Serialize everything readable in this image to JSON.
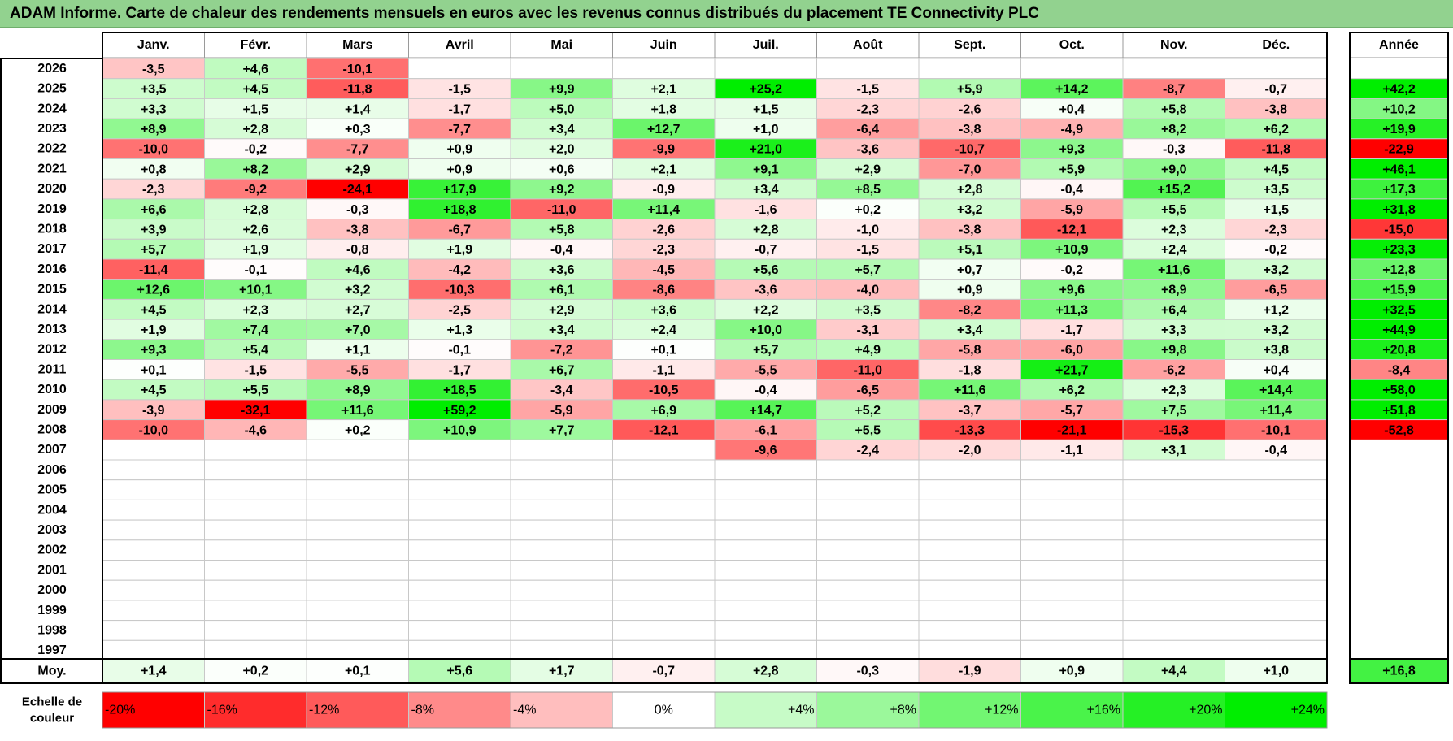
{
  "title": "ADAM Informe. Carte de chaleur des rendements mensuels en euros avec les revenus connus distribués du placement TE Connectivity PLC",
  "chart_data": {
    "type": "heatmap",
    "months": [
      "Janv.",
      "Févr.",
      "Mars",
      "Avril",
      "Mai",
      "Juin",
      "Juil.",
      "Août",
      "Sept.",
      "Oct.",
      "Nov.",
      "Déc."
    ],
    "year_column_label": "Année",
    "years": [
      "2026",
      "2025",
      "2024",
      "2023",
      "2022",
      "2021",
      "2020",
      "2019",
      "2018",
      "2017",
      "2016",
      "2015",
      "2014",
      "2013",
      "2012",
      "2011",
      "2010",
      "2009",
      "2008",
      "2007",
      "2006",
      "2005",
      "2004",
      "2003",
      "2002",
      "2001",
      "2000",
      "1999",
      "1998",
      "1997"
    ],
    "values": [
      [
        -3.5,
        4.6,
        -10.1,
        null,
        null,
        null,
        null,
        null,
        null,
        null,
        null,
        null
      ],
      [
        3.5,
        4.5,
        -11.8,
        -1.5,
        9.9,
        2.1,
        25.2,
        -1.5,
        5.9,
        14.2,
        -8.7,
        -0.7
      ],
      [
        3.3,
        1.5,
        1.4,
        -1.7,
        5.0,
        1.8,
        1.5,
        -2.3,
        -2.6,
        0.4,
        5.8,
        -3.8
      ],
      [
        8.9,
        2.8,
        0.3,
        -7.7,
        3.4,
        12.7,
        1.0,
        -6.4,
        -3.8,
        -4.9,
        8.2,
        6.2
      ],
      [
        -10.0,
        -0.2,
        -7.7,
        0.9,
        2.0,
        -9.9,
        21.0,
        -3.6,
        -10.7,
        9.3,
        -0.3,
        -11.8
      ],
      [
        0.8,
        8.2,
        2.9,
        0.9,
        0.6,
        2.1,
        9.1,
        2.9,
        -7.0,
        5.9,
        9.0,
        4.5
      ],
      [
        -2.3,
        -9.2,
        -24.1,
        17.9,
        9.2,
        -0.9,
        3.4,
        8.5,
        2.8,
        -0.4,
        15.2,
        3.5
      ],
      [
        6.6,
        2.8,
        -0.3,
        18.8,
        -11.0,
        11.4,
        -1.6,
        0.2,
        3.2,
        -5.9,
        5.5,
        1.5
      ],
      [
        3.9,
        2.6,
        -3.8,
        -6.7,
        5.8,
        -2.6,
        2.8,
        -1.0,
        -3.8,
        -12.1,
        2.3,
        -2.3
      ],
      [
        5.7,
        1.9,
        -0.8,
        1.9,
        -0.4,
        -2.3,
        -0.7,
        -1.5,
        5.1,
        10.9,
        2.4,
        -0.2
      ],
      [
        -11.4,
        -0.1,
        4.6,
        -4.2,
        3.6,
        -4.5,
        5.6,
        5.7,
        0.7,
        -0.2,
        11.6,
        3.2
      ],
      [
        12.6,
        10.1,
        3.2,
        -10.3,
        6.1,
        -8.6,
        -3.6,
        -4.0,
        0.9,
        9.6,
        8.9,
        -6.5
      ],
      [
        4.5,
        2.3,
        2.7,
        -2.5,
        2.9,
        3.6,
        2.2,
        3.5,
        -8.2,
        11.3,
        6.4,
        1.2
      ],
      [
        1.9,
        7.4,
        7.0,
        1.3,
        3.4,
        2.4,
        10.0,
        -3.1,
        3.4,
        -1.7,
        3.3,
        3.2
      ],
      [
        9.3,
        5.4,
        1.1,
        -0.1,
        -7.2,
        0.1,
        5.7,
        4.9,
        -5.8,
        -6.0,
        9.8,
        3.8
      ],
      [
        0.1,
        -1.5,
        -5.5,
        -1.7,
        6.7,
        -1.1,
        -5.5,
        -11.0,
        -1.8,
        21.7,
        -6.2,
        0.4
      ],
      [
        4.5,
        5.5,
        8.9,
        18.5,
        -3.4,
        -10.5,
        -0.4,
        -6.5,
        11.6,
        6.2,
        2.3,
        14.4
      ],
      [
        -3.9,
        -32.1,
        11.6,
        59.2,
        -5.9,
        6.9,
        14.7,
        5.2,
        -3.7,
        -5.7,
        7.5,
        11.4
      ],
      [
        -10.0,
        -4.6,
        0.2,
        10.9,
        7.7,
        -12.1,
        -6.1,
        5.5,
        -13.3,
        -21.1,
        -15.3,
        -10.1
      ],
      [
        null,
        null,
        null,
        null,
        null,
        null,
        -9.6,
        -2.4,
        -2.0,
        -1.1,
        3.1,
        -0.4
      ],
      [
        null,
        null,
        null,
        null,
        null,
        null,
        null,
        null,
        null,
        null,
        null,
        null
      ],
      [
        null,
        null,
        null,
        null,
        null,
        null,
        null,
        null,
        null,
        null,
        null,
        null
      ],
      [
        null,
        null,
        null,
        null,
        null,
        null,
        null,
        null,
        null,
        null,
        null,
        null
      ],
      [
        null,
        null,
        null,
        null,
        null,
        null,
        null,
        null,
        null,
        null,
        null,
        null
      ],
      [
        null,
        null,
        null,
        null,
        null,
        null,
        null,
        null,
        null,
        null,
        null,
        null
      ],
      [
        null,
        null,
        null,
        null,
        null,
        null,
        null,
        null,
        null,
        null,
        null,
        null
      ],
      [
        null,
        null,
        null,
        null,
        null,
        null,
        null,
        null,
        null,
        null,
        null,
        null
      ],
      [
        null,
        null,
        null,
        null,
        null,
        null,
        null,
        null,
        null,
        null,
        null,
        null
      ],
      [
        null,
        null,
        null,
        null,
        null,
        null,
        null,
        null,
        null,
        null,
        null,
        null
      ],
      [
        null,
        null,
        null,
        null,
        null,
        null,
        null,
        null,
        null,
        null,
        null,
        null
      ]
    ],
    "annual": [
      null,
      42.2,
      10.2,
      19.9,
      -22.9,
      46.1,
      17.3,
      31.8,
      -15.0,
      23.3,
      12.8,
      15.9,
      32.5,
      44.9,
      20.8,
      -8.4,
      58.0,
      51.8,
      -52.8,
      null,
      null,
      null,
      null,
      null,
      null,
      null,
      null,
      null,
      null,
      null
    ],
    "average_label": "Moy.",
    "averages": [
      1.4,
      0.2,
      0.1,
      5.6,
      1.7,
      -0.7,
      2.8,
      -0.3,
      -1.9,
      0.9,
      4.4,
      1.0
    ],
    "average_annual": 16.8,
    "scale_label": [
      "Echelle de",
      "couleur"
    ],
    "scale": [
      {
        "label": "-20%",
        "value": -20
      },
      {
        "label": "-16%",
        "value": -16
      },
      {
        "label": "-12%",
        "value": -12
      },
      {
        "label": "-8%",
        "value": -8
      },
      {
        "label": "-4%",
        "value": -4
      },
      {
        "label": "0%",
        "value": 0
      },
      {
        "label": "+4%",
        "value": 4
      },
      {
        "label": "+8%",
        "value": 8
      },
      {
        "label": "+12%",
        "value": 12
      },
      {
        "label": "+16%",
        "value": 16
      },
      {
        "label": "+20%",
        "value": 20
      },
      {
        "label": "+24%",
        "value": 24
      }
    ],
    "colors": {
      "negative_max": "#ff0000",
      "positive_max": "#00ee00",
      "neutral": "#ffffff",
      "title_bar": "#92d28f"
    }
  }
}
